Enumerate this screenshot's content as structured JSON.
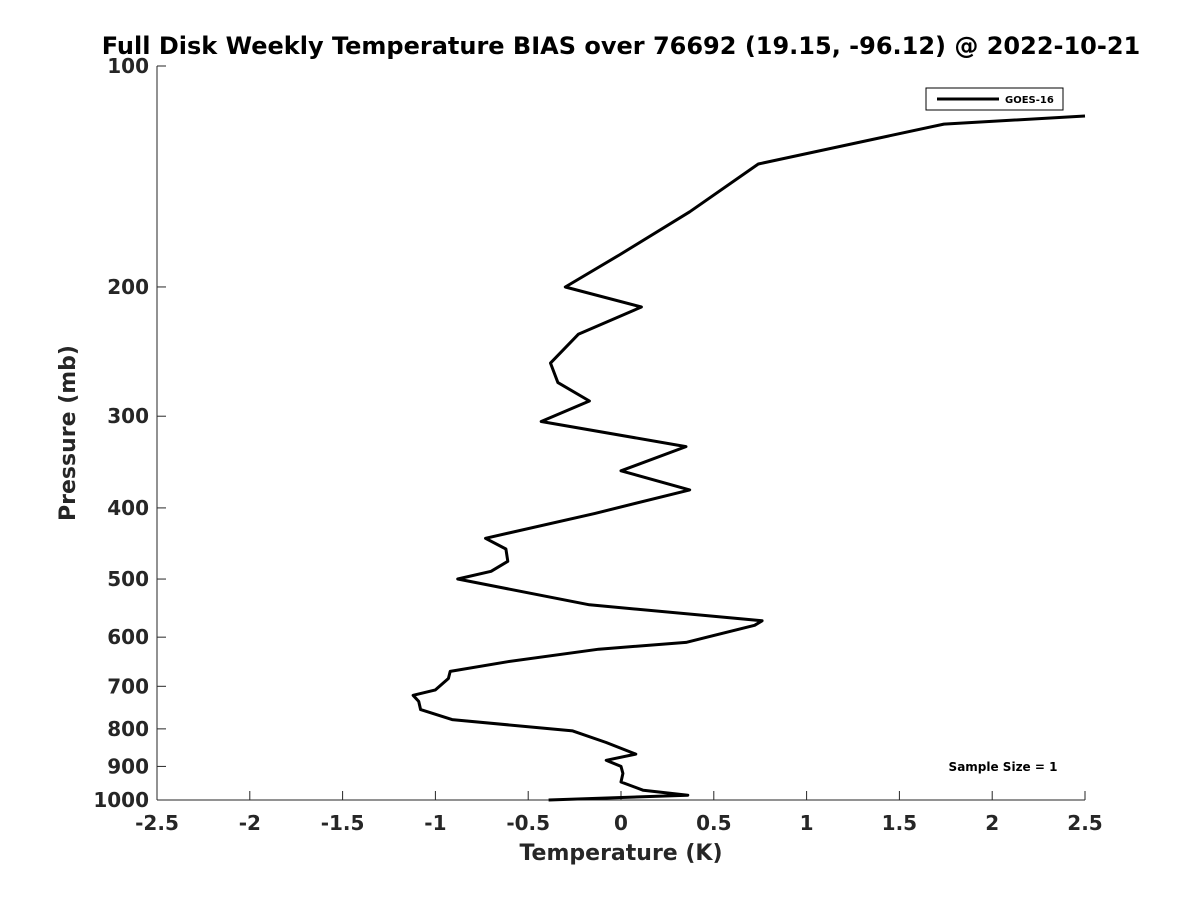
{
  "chart_data": {
    "type": "line",
    "title": "Full Disk Weekly Temperature BIAS over 76692 (19.15, -96.12) @ 2022-10-21",
    "xlabel": "Temperature (K)",
    "ylabel": "Pressure (mb)",
    "xlim": [
      -2.5,
      2.5
    ],
    "ylim": [
      1000,
      100
    ],
    "yscale": "log",
    "y_reversed": true,
    "grid": false,
    "legend_position": "top-right",
    "x_ticks": [
      "-2.5",
      "-2",
      "-1.5",
      "-1",
      "-0.5",
      "0",
      "0.5",
      "1",
      "1.5",
      "2",
      "2.5"
    ],
    "y_ticks": [
      "100",
      "200",
      "300",
      "400",
      "500",
      "600",
      "700",
      "800",
      "900",
      "1000"
    ],
    "annotation": "Sample Size = 1",
    "series": [
      {
        "name": "GOES-16",
        "color": "#000000",
        "x": [
          2.5,
          1.74,
          0.74,
          0.37,
          -0.01,
          -0.3,
          0.11,
          -0.23,
          -0.38,
          -0.34,
          -0.17,
          -0.43,
          0.35,
          0.0,
          0.37,
          -0.14,
          -0.73,
          -0.62,
          -0.61,
          -0.7,
          -0.88,
          -0.17,
          0.76,
          0.72,
          0.35,
          -0.12,
          -0.61,
          -0.92,
          -0.93,
          -1.0,
          -1.12,
          -1.09,
          -1.08,
          -0.91,
          -0.26,
          -0.08,
          0.08,
          -0.08,
          0.0,
          0.01,
          0.0,
          0.12,
          0.36,
          -0.39
        ],
        "y": [
          117,
          120,
          136,
          158,
          181,
          200,
          213,
          232,
          254,
          270,
          286,
          305,
          330,
          356,
          378,
          407,
          440,
          455,
          473,
          488,
          500,
          542,
          570,
          578,
          610,
          623,
          648,
          668,
          683,
          708,
          720,
          734,
          753,
          777,
          805,
          835,
          866,
          883,
          900,
          920,
          945,
          970,
          985,
          1000
        ]
      }
    ]
  }
}
